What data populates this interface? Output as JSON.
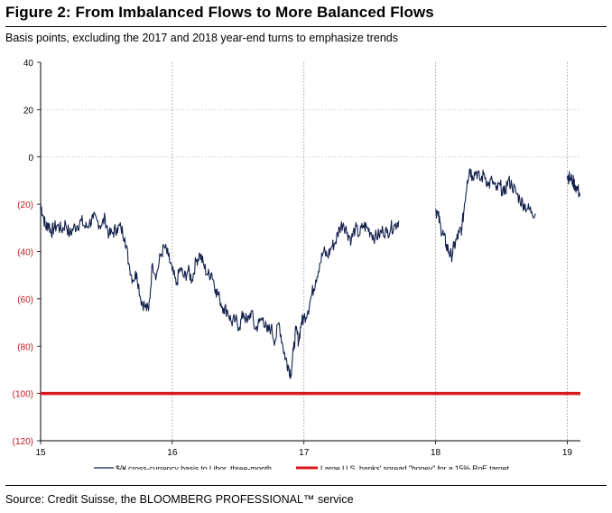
{
  "header": {
    "title": "Figure 2: From Imbalanced Flows to More Balanced Flows",
    "subtitle": "Basis points, excluding the 2017 and 2018 year-end turns to emphasize trends"
  },
  "footer": {
    "source": "Source: Credit Suisse, the BLOOMBERG PROFESSIONAL™ service"
  },
  "colors": {
    "series": "#14214d",
    "bogey": "#d7181e",
    "tick_negative": "#c0191f",
    "tick_positive": "#000000",
    "grid": "#bdbdbd"
  },
  "chart_data": {
    "type": "line",
    "title": "Figure 2: From Imbalanced Flows to More Balanced Flows",
    "xlabel": "",
    "ylabel": "Basis points",
    "xlim": [
      15,
      19.1
    ],
    "ylim": [
      -120,
      40
    ],
    "y_ticks": [
      40,
      20,
      0,
      -20,
      -40,
      -60,
      -80,
      -100,
      -120
    ],
    "y_tick_labels": [
      "40",
      "20",
      "0",
      "(20)",
      "(40)",
      "(60)",
      "(80)",
      "(100)",
      "(120)"
    ],
    "x_ticks": [
      15,
      16,
      17,
      18,
      19
    ],
    "x_tick_labels": [
      "15",
      "16",
      "17",
      "18",
      "19"
    ],
    "grid": "dotted vertical at year boundaries; dotted horizontal at 20 and 0",
    "legend_position": "bottom",
    "series": [
      {
        "name": "$/¥ cross-currency basis to Libor, three-month",
        "style": "line",
        "segments": [
          {
            "x": [
              15.0,
              15.02,
              15.04,
              15.06,
              15.08,
              15.1,
              15.13,
              15.16,
              15.19,
              15.22,
              15.25,
              15.28,
              15.31,
              15.34,
              15.37,
              15.4,
              15.43,
              15.46,
              15.49,
              15.52,
              15.55,
              15.58,
              15.61,
              15.64,
              15.67,
              15.7,
              15.73,
              15.76,
              15.79,
              15.82,
              15.85,
              15.88,
              15.91,
              15.94,
              15.97,
              16.0,
              16.03,
              16.06,
              16.09,
              16.12,
              16.15,
              16.18,
              16.21,
              16.24,
              16.27,
              16.3,
              16.33,
              16.36,
              16.39,
              16.42,
              16.45,
              16.48,
              16.51,
              16.54,
              16.57,
              16.6,
              16.63,
              16.66,
              16.69,
              16.72,
              16.75,
              16.78,
              16.81,
              16.84,
              16.86,
              16.88,
              16.9,
              16.92,
              16.94,
              16.96,
              16.98,
              17.0,
              17.03,
              17.06,
              17.09,
              17.12,
              17.15,
              17.18,
              17.21,
              17.24,
              17.27,
              17.3,
              17.33,
              17.36,
              17.39,
              17.42,
              17.45,
              17.48,
              17.51,
              17.54,
              17.57,
              17.6,
              17.63,
              17.66,
              17.69,
              17.72
            ],
            "y": [
              -20,
              -25,
              -30,
              -28,
              -32,
              -30,
              -29,
              -31,
              -28,
              -33,
              -30,
              -29,
              -27,
              -30,
              -28,
              -26,
              -27,
              -29,
              -26,
              -33,
              -32,
              -30,
              -30,
              -34,
              -45,
              -52,
              -49,
              -60,
              -63,
              -65,
              -45,
              -50,
              -42,
              -38,
              -42,
              -48,
              -54,
              -47,
              -51,
              -48,
              -52,
              -44,
              -41,
              -46,
              -50,
              -49,
              -56,
              -60,
              -64,
              -65,
              -70,
              -69,
              -72,
              -66,
              -70,
              -65,
              -73,
              -70,
              -68,
              -74,
              -72,
              -78,
              -70,
              -80,
              -85,
              -88,
              -92,
              -82,
              -73,
              -78,
              -70,
              -68,
              -65,
              -58,
              -52,
              -45,
              -40,
              -42,
              -38,
              -36,
              -30,
              -28,
              -32,
              -35,
              -30,
              -33,
              -29,
              -30,
              -32,
              -34,
              -33,
              -31,
              -32,
              -30,
              -29,
              -27
            ]
          },
          {
            "x": [
              18.0,
              18.02,
              18.04,
              18.06,
              18.08,
              18.1,
              18.12,
              18.14,
              18.16,
              18.18,
              18.2,
              18.22,
              18.24,
              18.26,
              18.28,
              18.31,
              18.34,
              18.37,
              18.4,
              18.43,
              18.46,
              18.49,
              18.52,
              18.55,
              18.58,
              18.61,
              18.64,
              18.67,
              18.7,
              18.73,
              18.76
            ],
            "y": [
              -22,
              -25,
              -30,
              -33,
              -37,
              -40,
              -42,
              -38,
              -35,
              -32,
              -30,
              -20,
              -10,
              -5,
              -8,
              -6,
              -10,
              -7,
              -12,
              -10,
              -14,
              -12,
              -16,
              -10,
              -12,
              -15,
              -18,
              -20,
              -22,
              -23,
              -24
            ]
          },
          {
            "x": [
              19.0,
              19.02,
              19.04,
              19.06,
              19.08,
              19.1
            ],
            "y": [
              -8,
              -9,
              -10,
              -12,
              -14,
              -16
            ]
          }
        ]
      },
      {
        "name": "Large U.S. banks' spread \"bogey\" for a 15% RoE target",
        "style": "flat-line",
        "value": -100
      }
    ]
  }
}
